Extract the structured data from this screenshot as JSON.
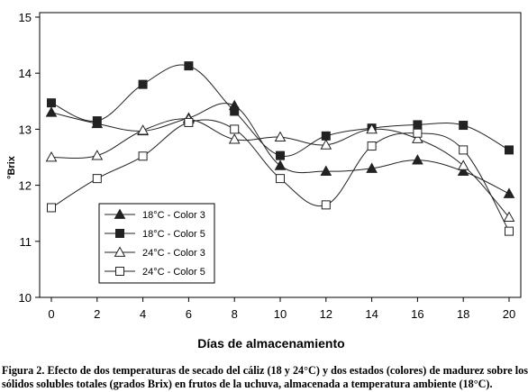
{
  "caption": "Figura 2. Efecto de dos temperaturas de secado del cáliz (18 y 24°C) y dos estados (colores) de madurez sobre los sólidos solubles totales (grados Brix) en frutos de la uchuva, almacenada a temperatura ambiente (18°C).",
  "chart_data": {
    "type": "line",
    "title": "",
    "xlabel": "Días de almacenamiento",
    "ylabel": "°Brix",
    "x": [
      0,
      2,
      4,
      6,
      8,
      10,
      12,
      14,
      16,
      18,
      20
    ],
    "xticks": [
      "0",
      "2",
      "4",
      "6",
      "8",
      "10",
      "12",
      "14",
      "16",
      "18",
      "20"
    ],
    "yticks": [
      "10",
      "11",
      "12",
      "13",
      "14",
      "15"
    ],
    "xlim": [
      0,
      20
    ],
    "ylim": [
      10,
      15
    ],
    "grid": false,
    "legend_position": "bottom-left",
    "series": [
      {
        "name": "18°C - Color 3",
        "marker": "filled-triangle",
        "values": [
          13.3,
          13.1,
          12.97,
          13.2,
          13.42,
          12.35,
          12.25,
          12.3,
          12.45,
          12.25,
          11.85
        ]
      },
      {
        "name": "18°C - Color 5",
        "marker": "filled-square",
        "values": [
          13.47,
          13.15,
          13.8,
          14.13,
          13.32,
          12.53,
          12.88,
          13.02,
          13.08,
          13.07,
          12.63
        ]
      },
      {
        "name": "24°C - Color 3",
        "marker": "open-triangle",
        "values": [
          12.5,
          12.53,
          12.98,
          13.18,
          12.82,
          12.86,
          12.72,
          13.0,
          12.83,
          12.35,
          11.43
        ]
      },
      {
        "name": "24°C - Color 5",
        "marker": "open-square",
        "values": [
          11.6,
          12.12,
          12.52,
          13.12,
          13.0,
          12.12,
          11.65,
          12.7,
          12.93,
          12.63,
          11.18
        ]
      }
    ]
  }
}
